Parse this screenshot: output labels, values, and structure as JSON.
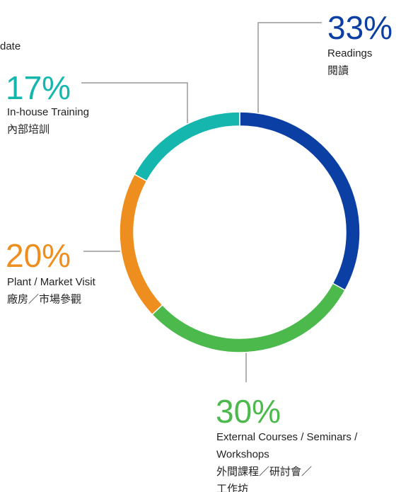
{
  "chart_data": {
    "type": "donut",
    "title": "date",
    "categories": [
      [
        "Readings",
        "閱讀"
      ],
      [
        "External Courses / Seminars /",
        "Workshops",
        "外間課程／研討會／",
        "工作坊"
      ],
      [
        "Plant / Market Visit",
        "廠房／市場參觀"
      ],
      [
        "In-house Training",
        "內部培訓"
      ]
    ],
    "values": [
      33,
      30,
      20,
      17
    ],
    "value_labels": [
      "33%",
      "30%",
      "20%",
      "17%"
    ],
    "colors": [
      "#0b3fa4",
      "#4cb94d",
      "#ee8e1f",
      "#14b6ae"
    ]
  }
}
